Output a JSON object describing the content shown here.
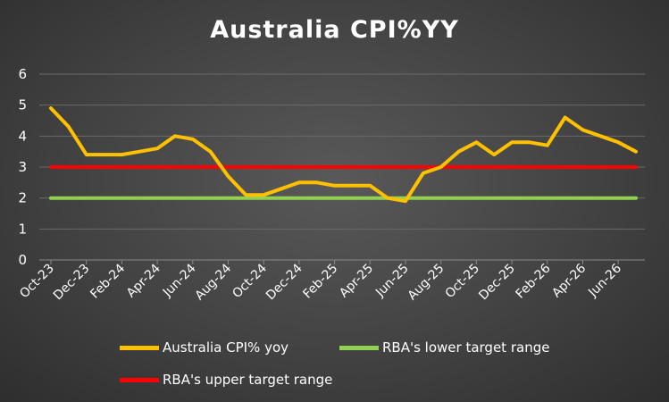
{
  "chart_data": {
    "type": "line",
    "title": "Australia CPI%YY",
    "xlabel": "",
    "ylabel": "",
    "ylim": [
      0,
      6
    ],
    "yticks": [
      "0",
      "1",
      "2",
      "3",
      "4",
      "5",
      "6"
    ],
    "categories": [
      "Oct-23",
      "Nov-23",
      "Dec-23",
      "Jan-24",
      "Feb-24",
      "Mar-24",
      "Apr-24",
      "May-24",
      "Jun-24",
      "Jul-24",
      "Aug-24",
      "Sep-24",
      "Oct-24",
      "Nov-24",
      "Dec-24",
      "Jan-25",
      "Feb-25",
      "Mar-25",
      "Apr-25",
      "May-25",
      "Jun-25",
      "Jul-25",
      "Aug-25",
      "Sep-25",
      "Oct-25",
      "Nov-25",
      "Dec-25",
      "Jan-26",
      "Feb-26",
      "Mar-26",
      "Apr-26",
      "May-26",
      "Jun-26",
      "Jul-26"
    ],
    "tick_labels": [
      "Oct-23",
      "Dec-23",
      "Feb-24",
      "Apr-24",
      "Jun-24",
      "Aug-24",
      "Oct-24",
      "Dec-24",
      "Feb-25",
      "Apr-25",
      "Jun-25",
      "Aug-25",
      "Oct-25",
      "Dec-25",
      "Feb-26",
      "Apr-26",
      "Jun-26"
    ],
    "grid": true,
    "legend": "bottom",
    "series": [
      {
        "name": "Australia CPI% yoy",
        "color": "#FFC000",
        "values": [
          4.9,
          4.3,
          3.4,
          3.4,
          3.4,
          3.5,
          3.6,
          4.0,
          3.9,
          3.5,
          2.7,
          2.1,
          2.1,
          2.3,
          2.5,
          2.5,
          2.4,
          2.4,
          2.4,
          2.0,
          1.9,
          2.8,
          3.0,
          3.5,
          3.8,
          3.4,
          3.8,
          3.8,
          3.7,
          4.6,
          4.2,
          4.0,
          3.8,
          3.5
        ]
      },
      {
        "name": "RBA's lower target range",
        "color": "#92D050",
        "values": [
          2,
          2,
          2,
          2,
          2,
          2,
          2,
          2,
          2,
          2,
          2,
          2,
          2,
          2,
          2,
          2,
          2,
          2,
          2,
          2,
          2,
          2,
          2,
          2,
          2,
          2,
          2,
          2,
          2,
          2,
          2,
          2,
          2,
          2
        ]
      },
      {
        "name": "RBA's upper target range",
        "color": "#FF0000",
        "values": [
          3,
          3,
          3,
          3,
          3,
          3,
          3,
          3,
          3,
          3,
          3,
          3,
          3,
          3,
          3,
          3,
          3,
          3,
          3,
          3,
          3,
          3,
          3,
          3,
          3,
          3,
          3,
          3,
          3,
          3,
          3,
          3,
          3,
          3
        ]
      }
    ]
  }
}
